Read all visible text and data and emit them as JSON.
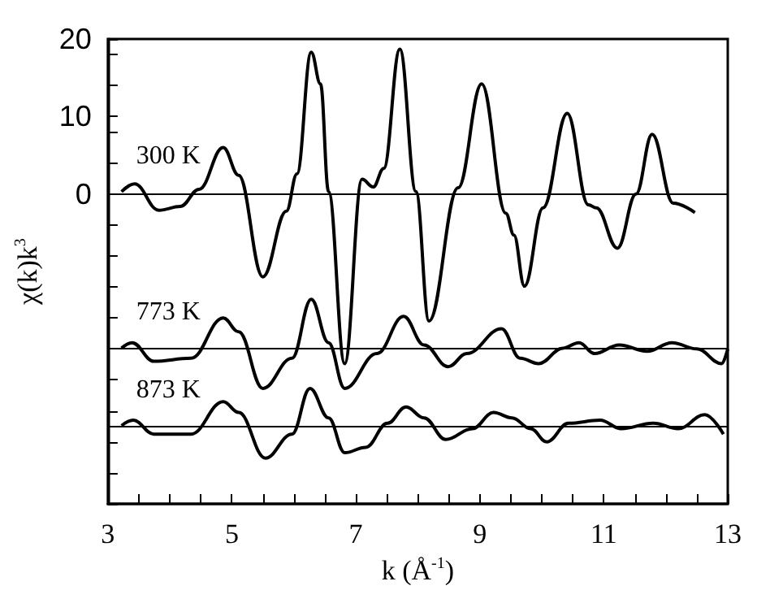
{
  "chart_data": {
    "type": "line",
    "xlabel": "k (Å$^{-1}$)",
    "ylabel": "χ(k)k$^{3}$",
    "xlim": [
      3,
      13
    ],
    "ylim": [
      -40,
      20
    ],
    "xticks": [
      3,
      {
        "value": 3.5,
        "label": null
      },
      {
        "value": 4,
        "label": null
      },
      {
        "value": 4.5,
        "label": null
      },
      5,
      {
        "value": 5.5,
        "label": null
      },
      {
        "value": 6,
        "label": null
      },
      {
        "value": 6.5,
        "label": null
      },
      7,
      {
        "value": 7.5,
        "label": null
      },
      {
        "value": 8,
        "label": null
      },
      {
        "value": 8.5,
        "label": null
      },
      9,
      {
        "value": 9.5,
        "label": null
      },
      {
        "value": 10,
        "label": null
      },
      {
        "value": 10.5,
        "label": null
      },
      11,
      {
        "value": 11.5,
        "label": null
      },
      {
        "value": 12,
        "label": null
      },
      {
        "value": 12.5,
        "label": null
      },
      13
    ],
    "yticks": [
      {
        "value": -40,
        "label": null
      },
      {
        "value": -36,
        "label": null
      },
      {
        "value": -32,
        "label": null
      },
      {
        "value": -28,
        "label": null
      },
      {
        "value": -24,
        "label": null
      },
      {
        "value": -20,
        "label": null
      },
      {
        "value": -16,
        "label": null
      },
      {
        "value": -12,
        "label": null
      },
      {
        "value": -8,
        "label": null
      },
      {
        "value": -4,
        "label": null
      },
      0,
      {
        "value": 4,
        "label": null
      },
      {
        "value": 8,
        "label": null
      },
      10,
      {
        "value": 14,
        "label": null
      },
      {
        "value": 18,
        "label": null
      },
      20
    ],
    "legend": false,
    "marker": "none",
    "line_style": "solid",
    "ref_lines": [
      {
        "axis": "y",
        "value": 0,
        "color": "#000000"
      },
      {
        "axis": "y",
        "value": -20,
        "color": "#000000"
      },
      {
        "axis": "y",
        "value": -30,
        "color": "#000000"
      }
    ],
    "series": [
      {
        "name": "300 K",
        "color": "#000000",
        "x": [
          3.22,
          3.43,
          3.82,
          4.17,
          4.47,
          4.86,
          5.11,
          5.5,
          5.88,
          6.05,
          6.28,
          6.43,
          6.56,
          6.82,
          7.1,
          7.28,
          7.45,
          7.71,
          7.97,
          8.18,
          8.65,
          9.03,
          9.42,
          9.55,
          9.72,
          10.02,
          10.41,
          10.75,
          10.88,
          11.22,
          11.52,
          11.78,
          12.12,
          12.47
        ],
        "values": [
          0.3,
          1.3,
          -2.1,
          -1.6,
          0.6,
          6.0,
          2.4,
          -10.7,
          -2.2,
          2.6,
          18.3,
          14.2,
          0.3,
          -21.9,
          1.9,
          0.9,
          3.3,
          18.7,
          0.3,
          -16.4,
          0.8,
          14.2,
          -2.5,
          -5.3,
          -11.9,
          -1.8,
          10.4,
          -1.4,
          -1.8,
          -7.0,
          0,
          7.7,
          -1.2,
          -2.4
        ]
      },
      {
        "name": "773 K",
        "color": "#000000",
        "x": [
          3.22,
          3.39,
          3.74,
          4.34,
          4.86,
          5.11,
          5.5,
          5.97,
          6.28,
          6.56,
          6.82,
          7.34,
          7.77,
          8.1,
          8.49,
          8.79,
          9.35,
          9.65,
          9.95,
          10.34,
          10.6,
          10.85,
          11.25,
          11.7,
          12.1,
          12.5,
          12.9,
          13
        ],
        "values": [
          -19.9,
          -19.2,
          -21.6,
          -21.2,
          -16.0,
          -17.8,
          -25.1,
          -21.2,
          -13.6,
          -19.2,
          -25.1,
          -20.6,
          -15.8,
          -19.5,
          -22.3,
          -20.6,
          -17.4,
          -21.2,
          -21.9,
          -19.9,
          -19.2,
          -20.6,
          -19.5,
          -20.3,
          -19.2,
          -20.0,
          -21.9,
          -20.0
        ]
      },
      {
        "name": "873 K",
        "color": "#000000",
        "x": [
          3.22,
          3.41,
          3.74,
          4.34,
          4.86,
          5.11,
          5.54,
          5.97,
          6.26,
          6.56,
          6.82,
          7.16,
          7.51,
          7.81,
          8.1,
          8.45,
          8.88,
          9.22,
          9.52,
          9.82,
          10.08,
          10.43,
          10.94,
          11.28,
          11.8,
          12.2,
          12.63,
          12.93
        ],
        "values": [
          -29.9,
          -29.2,
          -31.0,
          -31.0,
          -26.8,
          -28.2,
          -34.1,
          -31.0,
          -25.1,
          -28.9,
          -33.4,
          -32.7,
          -29.6,
          -27.5,
          -28.9,
          -31.7,
          -30.3,
          -28.2,
          -28.9,
          -30.3,
          -32.0,
          -29.6,
          -29.2,
          -30.3,
          -29.6,
          -30.3,
          -28.5,
          -31.0
        ]
      }
    ]
  }
}
